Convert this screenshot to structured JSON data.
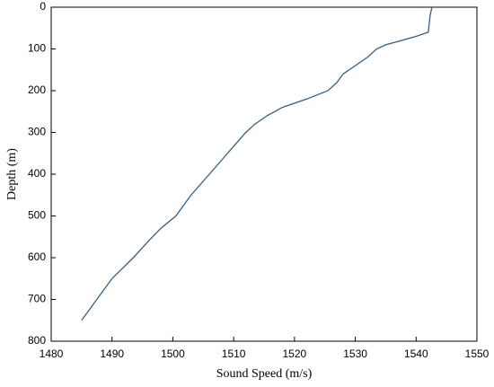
{
  "chart_data": {
    "type": "line",
    "x_label": "Sound Speed (m/s)",
    "y_label": "Depth (m)",
    "x": [
      1542.6,
      1542.3,
      1542.0,
      1540,
      1537.5,
      1535,
      1533.5,
      1532,
      1530,
      1528,
      1527,
      1525.5,
      1522,
      1518,
      1515.5,
      1513.5,
      1512,
      1509,
      1506,
      1503,
      1500.5,
      1498,
      1496,
      1493.5,
      1490,
      1487.5,
      1485
    ],
    "values": [
      0,
      20,
      60,
      70,
      80,
      90,
      100,
      120,
      140,
      160,
      180,
      200,
      220,
      240,
      260,
      280,
      300,
      350,
      400,
      450,
      500,
      530,
      560,
      600,
      650,
      700,
      750
    ],
    "color": "#2e5f8f",
    "xlim": [
      1480,
      1550
    ],
    "xticks": [
      1480,
      1490,
      1500,
      1510,
      1520,
      1530,
      1540,
      1550
    ],
    "ylim": [
      0,
      800
    ],
    "yticks": [
      0,
      100,
      200,
      300,
      400,
      500,
      600,
      700,
      800
    ],
    "y_inverted": true
  }
}
